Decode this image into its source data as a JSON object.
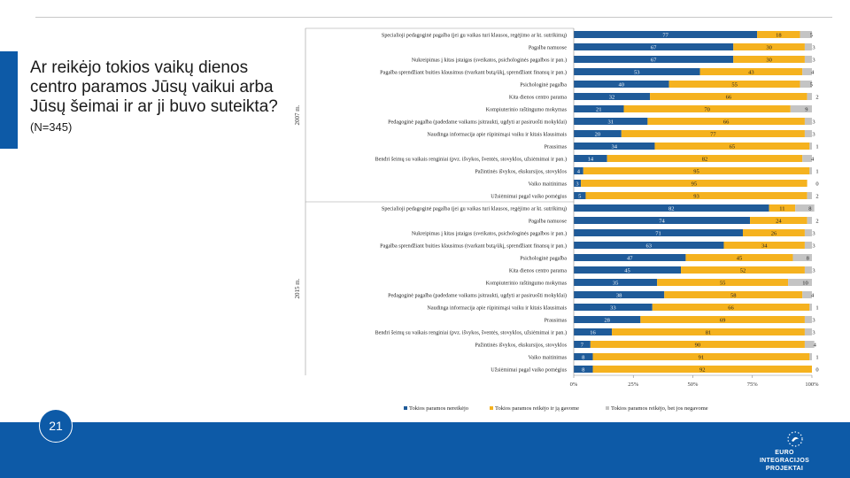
{
  "page": {
    "heading": "Ar reikėjo tokios vaikų dienos centro paramos Jūsų vaikui arba Jūsų šeimai ir ar ji buvo suteikta?",
    "sample": "(N=345)",
    "page_number": "21",
    "logo_line1": "EURO",
    "logo_line2": "INTEGRACIJOS",
    "logo_line3": "PROJEKTAI"
  },
  "colors": {
    "not_needed": "#1f5b99",
    "needed_received": "#f5b21f",
    "needed_not_received": "#c4c4c4"
  },
  "chart_data": {
    "type": "bar",
    "stacked": true,
    "orientation": "horizontal",
    "title": "",
    "xlabel": "",
    "ylabel": "",
    "xlim": [
      0,
      100
    ],
    "x_ticks": [
      "0%",
      "25%",
      "50%",
      "75%",
      "100%"
    ],
    "legend": [
      "Tokios paramos nereikėjo",
      "Tokios paramos reikėjo ir ją gavome",
      "Tokios paramos reikėjo, bet jos negavome"
    ],
    "legend_position": "bottom",
    "groups": [
      {
        "label": "2007 m.",
        "categories": [
          "Specialioji pedagoginė pagalba (jei gu vaikas turi klausos, regėjimo ar kt. sutrikimų)",
          "Pagalba namuose",
          "Nukreipimas į kitas įstaigas (sveikatos, psichologinės pagalbos ir pan.)",
          "Pagalba sprendžiant buities klausimus (tvarkant butą/ūkį, sprendžiant finansų ir pan.)",
          "Psichologinė pagalba",
          "Kita dienos centro parama",
          "Kompiuterinio raštingumo mokymas",
          "Pedagoginė pagalba (padedame vaikams įsitraukti, ugdyti ar pasiruošti mokyklai)",
          "Naudinga informacija apie rūpinimąsi vaiku ir kitais klausimais",
          "Prausimas",
          "Bendri šeimų su vaikais renginiai (pvz. išvykos, šventės, stovyklos, užsiėmimai ir pan.)",
          "Pažintinės išvykos, ekskursijos, stovyklos",
          "Vaiko maitinimas",
          "Užsiėmimai pagal vaiko pomėgius"
        ],
        "series": [
          {
            "name": "Tokios paramos nereikėjo",
            "values": [
              77,
              67,
              67,
              53,
              40,
              32,
              21,
              31,
              20,
              34,
              14,
              4,
              3,
              5
            ]
          },
          {
            "name": "Tokios paramos reikėjo ir ją gavome",
            "values": [
              18,
              30,
              30,
              43,
              55,
              66,
              70,
              66,
              77,
              65,
              82,
              95,
              95,
              93
            ]
          },
          {
            "name": "Tokios paramos reikėjo, bet jos negavome",
            "values": [
              5,
              3,
              3,
              4,
              5,
              2,
              9,
              3,
              3,
              1,
              4,
              1,
              0,
              2
            ]
          }
        ]
      },
      {
        "label": "2015 m.",
        "categories": [
          "Specialioji pedagoginė pagalba (jei gu vaikas turi klausos, regėjimo ar kt. sutrikimų)",
          "Pagalba namuose",
          "Nukreipimas į kitas įstaigas (sveikatos, psichologinės pagalbos ir pan.)",
          "Pagalba sprendžiant buities klausimus (tvarkant butą/ūkį, sprendžiant finansų ir pan.)",
          "Psichologinė pagalba",
          "Kita dienos centro parama",
          "Kompiuterinio raštingumo mokymas",
          "Pedagoginė pagalba (padedame vaikams įsitraukti, ugdyti ar pasiruošti mokyklai)",
          "Naudinga informacija apie rūpinimąsi vaiku ir kitais klausimais",
          "Prausimas",
          "Bendri šeimų su vaikais renginiai (pvz. išvykos, šventės, stovyklos, užsiėmimai ir pan.)",
          "Pažintinės išvykos, ekskursijos, stovyklos",
          "Vaiko maitinimas",
          "Užsiėmimai pagal vaiko pomėgius"
        ],
        "series": [
          {
            "name": "Tokios paramos nereikėjo",
            "values": [
              82,
              74,
              71,
              63,
              47,
              45,
              35,
              38,
              33,
              28,
              16,
              7,
              8,
              8
            ]
          },
          {
            "name": "Tokios paramos reikėjo ir ją gavome",
            "values": [
              11,
              24,
              26,
              34,
              45,
              52,
              55,
              58,
              66,
              69,
              81,
              90,
              91,
              92
            ]
          },
          {
            "name": "Tokios paramos reikėjo, bet jos negavome",
            "values": [
              8,
              2,
              3,
              3,
              8,
              3,
              10,
              4,
              1,
              3,
              3,
              4,
              1,
              0
            ]
          }
        ]
      }
    ]
  }
}
